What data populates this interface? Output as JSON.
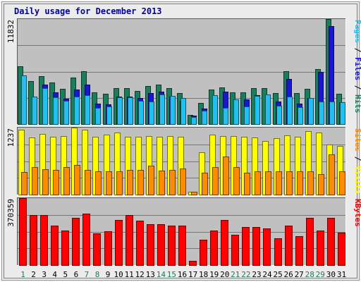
{
  "chart_data": {
    "type": "bar",
    "title": "Daily usage for December 2013",
    "categories": [
      "1",
      "2",
      "3",
      "4",
      "5",
      "6",
      "7",
      "8",
      "9",
      "10",
      "11",
      "12",
      "13",
      "14",
      "15",
      "16",
      "17",
      "18",
      "19",
      "20",
      "21",
      "22",
      "23",
      "24",
      "25",
      "26",
      "27",
      "28",
      "29",
      "30",
      "31"
    ],
    "weekend_days": [
      "1",
      "7",
      "8",
      "14",
      "15",
      "21",
      "22",
      "28",
      "29"
    ],
    "panels": [
      {
        "ylabel": [
          "Pages",
          "Files",
          "Hits"
        ],
        "max_label": "11832",
        "ylim": [
          0,
          11832
        ],
        "series": [
          {
            "name": "Hits",
            "color": "#1a7e5d",
            "values": [
              6550,
              4820,
              5390,
              4650,
              4000,
              5230,
              5960,
              3600,
              3380,
              4080,
              4080,
              3750,
              4300,
              4480,
              4080,
              3530,
              1040,
              2400,
              3880,
              4140,
              3580,
              3580,
              4080,
              4080,
              3530,
              5950,
              3530,
              3980,
              6190,
              11830,
              3420
            ]
          },
          {
            "name": "Files",
            "color": "#1818d0",
            "values": [
              5450,
              3130,
              4420,
              3580,
              2860,
              3870,
              4470,
              2280,
              2250,
              3130,
              3130,
              2960,
              3460,
              3650,
              3130,
              2650,
              960,
              1730,
              2960,
              3650,
              2530,
              2800,
              3280,
              3330,
              2530,
              5050,
              2330,
              2930,
              5850,
              11000,
              2450
            ]
          },
          {
            "name": "Pages",
            "color": "#20c0f0",
            "values": [
              5450,
              3130,
              4020,
              3050,
              2650,
              3130,
              3270,
              1850,
              1950,
              3050,
              3050,
              2600,
              2510,
              3330,
              3180,
              2940,
              760,
              1530,
              3270,
              1790,
              2740,
              1950,
              3180,
              3330,
              2040,
              3100,
              1890,
              2930,
              2510,
              2510,
              2450
            ]
          }
        ]
      },
      {
        "ylabel": [
          "Sites",
          "Visits"
        ],
        "max_label": "1237",
        "ylim": [
          0,
          1237
        ],
        "series": [
          {
            "name": "Visits",
            "color": "#ffff00",
            "values": [
              1195,
              1050,
              1125,
              1065,
              1085,
              1237,
              1195,
              1065,
              1107,
              1140,
              1065,
              1065,
              1080,
              1065,
              1080,
              1065,
              55,
              785,
              1107,
              1080,
              1080,
              1065,
              1050,
              995,
              1045,
              1095,
              1065,
              1175,
              1140,
              925,
              893
            ]
          },
          {
            "name": "Sites",
            "color": "#ff8c00",
            "values": [
              420,
              510,
              475,
              460,
              505,
              545,
              460,
              430,
              430,
              430,
              460,
              460,
              530,
              440,
              460,
              480,
              55,
              400,
              510,
              705,
              505,
              410,
              430,
              430,
              430,
              430,
              430,
              430,
              375,
              740,
              430
            ]
          }
        ]
      },
      {
        "ylabel": [
          "KBytes"
        ],
        "max_label": "370359",
        "ylim": [
          0,
          370359
        ],
        "series": [
          {
            "name": "KBytes",
            "color": "#ff0000",
            "values": [
              370359,
              278000,
              278000,
              220000,
              192000,
              260000,
              285000,
              176000,
              187000,
              251000,
              276000,
              247000,
              226000,
              226000,
              217000,
              217000,
              22500,
              140000,
              190000,
              251000,
              169000,
              209000,
              209000,
              203000,
              149000,
              217000,
              160000,
              260000,
              192000,
              260000,
              180000
            ]
          }
        ]
      }
    ]
  }
}
